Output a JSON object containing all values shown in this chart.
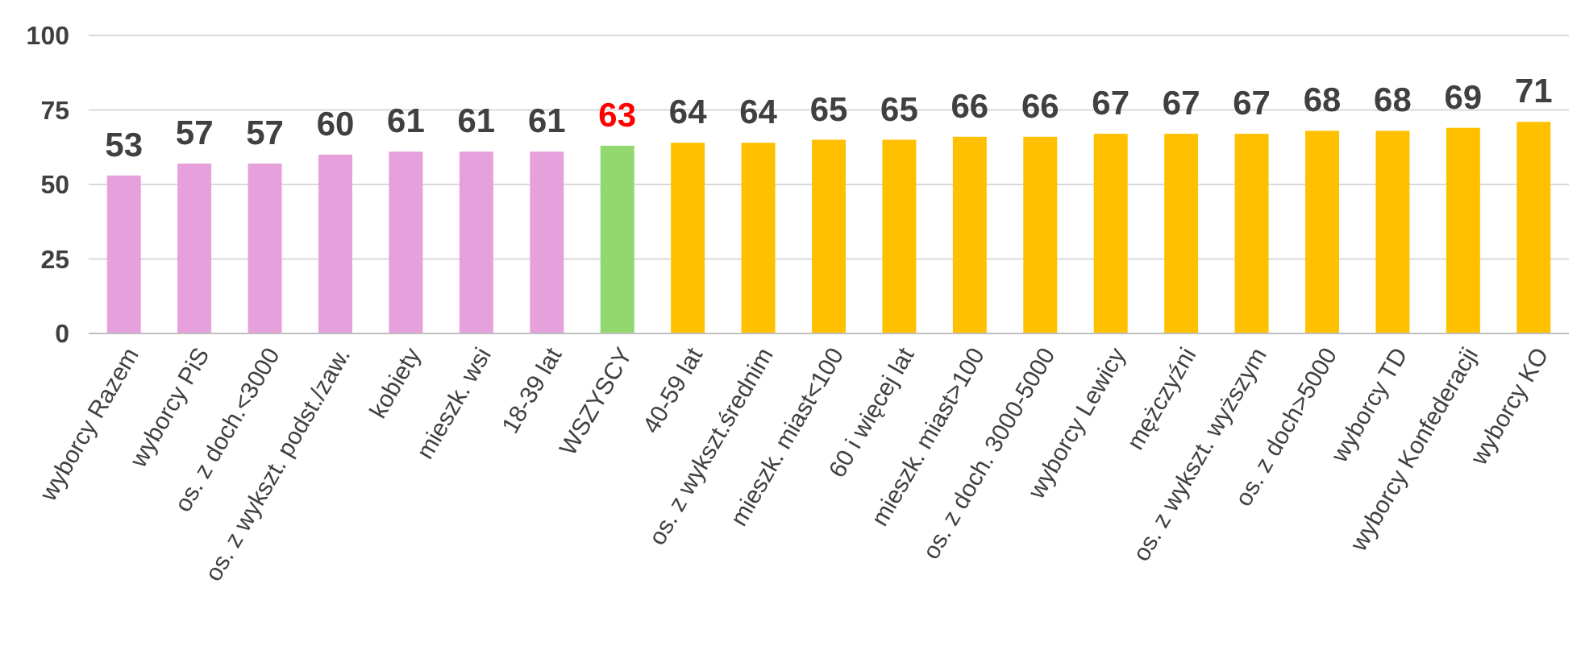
{
  "chart_data": {
    "type": "bar",
    "categories": [
      "wyborcy Razem",
      "wyborcy PiS",
      "os. z doch.<3000",
      "os. z wykszt. podst./zaw.",
      "kobiety",
      "mieszk. wsi",
      "18-39 lat",
      "WSZYSCY",
      "40-59 lat",
      "os. z wykszt.średnim",
      "mieszk. miast<100",
      "60 i więcej lat",
      "mieszk. miast>100",
      "os. z doch. 3000-5000",
      "wyborcy Lewicy",
      "mężczyźni",
      "os. z wykszt. wyższym",
      "os. z doch>5000",
      "wyborcy TD",
      "wyborcy Konfederacji",
      "wyborcy KO"
    ],
    "values": [
      53,
      57,
      57,
      60,
      61,
      61,
      61,
      63,
      64,
      64,
      65,
      65,
      66,
      66,
      67,
      67,
      67,
      68,
      68,
      69,
      71
    ],
    "colors": [
      "#e6a0dc",
      "#e6a0dc",
      "#e6a0dc",
      "#e6a0dc",
      "#e6a0dc",
      "#e6a0dc",
      "#e6a0dc",
      "#92d86f",
      "#ffc000",
      "#ffc000",
      "#ffc000",
      "#ffc000",
      "#ffc000",
      "#ffc000",
      "#ffc000",
      "#ffc000",
      "#ffc000",
      "#ffc000",
      "#ffc000",
      "#ffc000",
      "#ffc000"
    ],
    "ylim": [
      0,
      100
    ],
    "yticks": [
      0,
      25,
      50,
      75,
      100
    ],
    "grid": "y",
    "data_labels": true
  }
}
